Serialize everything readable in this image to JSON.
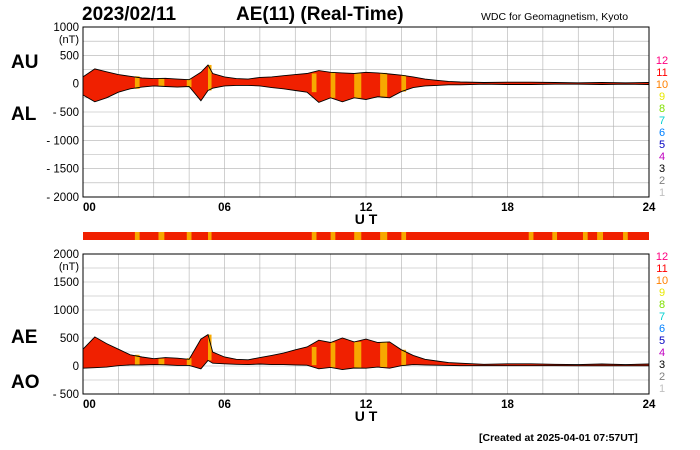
{
  "header": {
    "date": "2023/02/11",
    "title": "AE(11) (Real-Time)",
    "credit": "WDC for Geomagnetism, Kyoto"
  },
  "footer": {
    "created": "[Created at 2025-04-01 07:57UT]"
  },
  "labels": {
    "au": "AU",
    "al": "AL",
    "ae": "AE",
    "ao": "AO"
  },
  "colors": {
    "background": "#ffffff",
    "grid": "#b0b0b0",
    "fill": "#f02000",
    "outline": "#000000",
    "highlight": "#f7a800"
  },
  "station_key": [
    {
      "label": "12",
      "color": "#ff0080"
    },
    {
      "label": "11",
      "color": "#ff0000"
    },
    {
      "label": "10",
      "color": "#ff8000"
    },
    {
      "label": "9",
      "color": "#e8e800"
    },
    {
      "label": "8",
      "color": "#80e000"
    },
    {
      "label": "7",
      "color": "#00d0d0"
    },
    {
      "label": "6",
      "color": "#0080ff"
    },
    {
      "label": "5",
      "color": "#0000c0"
    },
    {
      "label": "4",
      "color": "#c000c0"
    },
    {
      "label": "3",
      "color": "#000000"
    },
    {
      "label": "2",
      "color": "#808080"
    },
    {
      "label": "1",
      "color": "#c0c0c0"
    }
  ],
  "status_bar": {
    "default_color": "#f02000",
    "highlight_color": "#f7a800",
    "highlight_segments_hours": [
      [
        2.2,
        2.4
      ],
      [
        3.2,
        3.45
      ],
      [
        4.4,
        4.6
      ],
      [
        5.3,
        5.45
      ],
      [
        9.7,
        9.9
      ],
      [
        10.5,
        10.7
      ],
      [
        11.5,
        11.8
      ],
      [
        12.6,
        12.9
      ],
      [
        13.5,
        13.7
      ],
      [
        18.9,
        19.1
      ],
      [
        19.9,
        20.1
      ],
      [
        21.2,
        21.4
      ],
      [
        21.8,
        22.05
      ],
      [
        22.9,
        23.1
      ]
    ]
  },
  "chart_data": [
    {
      "type": "area",
      "name": "AU/AL",
      "xlabel": "U T",
      "ylabel": "(nT)",
      "xlim": [
        0,
        24
      ],
      "ylim": [
        -2000,
        1000
      ],
      "x_ticks": [
        "00",
        "06",
        "12",
        "18",
        "24"
      ],
      "y_ticks": [
        "1000",
        "500",
        "0",
        "- 500",
        "- 1000",
        "- 1500",
        "- 2000"
      ],
      "grid": true,
      "series": [
        {
          "name": "AU",
          "x": [
            0,
            0.5,
            1,
            1.5,
            2,
            2.5,
            3,
            3.5,
            4,
            4.5,
            5,
            5.3,
            5.5,
            6,
            6.5,
            7,
            7.5,
            8,
            8.5,
            9,
            9.5,
            10,
            10.5,
            11,
            11.5,
            12,
            12.5,
            13,
            13.5,
            14,
            14.5,
            15,
            15.5,
            16,
            17,
            18,
            19,
            20,
            21,
            22,
            23,
            24
          ],
          "values": [
            120,
            260,
            210,
            160,
            130,
            100,
            90,
            95,
            80,
            70,
            200,
            330,
            180,
            120,
            90,
            80,
            110,
            120,
            140,
            160,
            180,
            230,
            200,
            190,
            180,
            200,
            190,
            170,
            150,
            120,
            80,
            60,
            40,
            30,
            20,
            25,
            25,
            20,
            15,
            20,
            15,
            20
          ]
        },
        {
          "name": "AL",
          "x": [
            0,
            0.5,
            1,
            1.5,
            2,
            2.5,
            3,
            3.5,
            4,
            4.5,
            5,
            5.3,
            5.5,
            6,
            6.5,
            7,
            7.5,
            8,
            8.5,
            9,
            9.5,
            10,
            10.5,
            11,
            11.5,
            12,
            12.5,
            13,
            13.5,
            14,
            14.5,
            15,
            15.5,
            16,
            17,
            18,
            19,
            20,
            21,
            22,
            23,
            24
          ],
          "values": [
            -200,
            -320,
            -250,
            -150,
            -90,
            -60,
            -40,
            -50,
            -60,
            -50,
            -300,
            -120,
            -80,
            -40,
            -30,
            -30,
            -40,
            -70,
            -90,
            -120,
            -150,
            -330,
            -250,
            -320,
            -250,
            -280,
            -230,
            -250,
            -140,
            -70,
            -40,
            -30,
            -20,
            -20,
            -10,
            -15,
            -15,
            -10,
            -10,
            -15,
            -10,
            -15
          ]
        }
      ]
    },
    {
      "type": "area",
      "name": "AE/AO",
      "xlabel": "U T",
      "ylabel": "(nT)",
      "xlim": [
        0,
        24
      ],
      "ylim": [
        -500,
        2000
      ],
      "x_ticks": [
        "00",
        "06",
        "12",
        "18",
        "24"
      ],
      "y_ticks": [
        "2000",
        "1500",
        "1000",
        "500",
        "0",
        "- 500"
      ],
      "grid": true,
      "series": [
        {
          "name": "AE",
          "x": [
            0,
            0.5,
            1,
            1.5,
            2,
            2.5,
            3,
            3.5,
            4,
            4.5,
            5,
            5.3,
            5.5,
            6,
            6.5,
            7,
            7.5,
            8,
            8.5,
            9,
            9.5,
            10,
            10.5,
            11,
            11.5,
            12,
            12.5,
            13,
            13.5,
            14,
            14.5,
            15,
            15.5,
            16,
            17,
            18,
            19,
            20,
            21,
            22,
            23,
            24
          ],
          "values": [
            300,
            520,
            400,
            300,
            200,
            160,
            130,
            150,
            140,
            120,
            480,
            560,
            250,
            160,
            120,
            110,
            150,
            190,
            230,
            290,
            340,
            460,
            420,
            500,
            430,
            480,
            420,
            430,
            290,
            190,
            120,
            90,
            60,
            50,
            30,
            40,
            40,
            30,
            25,
            35,
            25,
            35
          ]
        },
        {
          "name": "AO",
          "x": [
            0,
            0.5,
            1,
            1.5,
            2,
            2.5,
            3,
            3.5,
            4,
            4.5,
            5,
            5.3,
            5.5,
            6,
            6.5,
            7,
            7.5,
            8,
            8.5,
            9,
            9.5,
            10,
            10.5,
            11,
            11.5,
            12,
            12.5,
            13,
            13.5,
            14,
            14.5,
            15,
            15.5,
            16,
            17,
            18,
            19,
            20,
            21,
            22,
            23,
            24
          ],
          "values": [
            -40,
            -30,
            -20,
            5,
            20,
            20,
            25,
            22,
            10,
            10,
            -50,
            100,
            50,
            40,
            30,
            25,
            35,
            25,
            25,
            20,
            15,
            -50,
            -25,
            -65,
            -35,
            -40,
            -20,
            -40,
            5,
            25,
            20,
            15,
            10,
            5,
            5,
            5,
            5,
            5,
            3,
            3,
            3,
            3
          ]
        }
      ]
    }
  ]
}
